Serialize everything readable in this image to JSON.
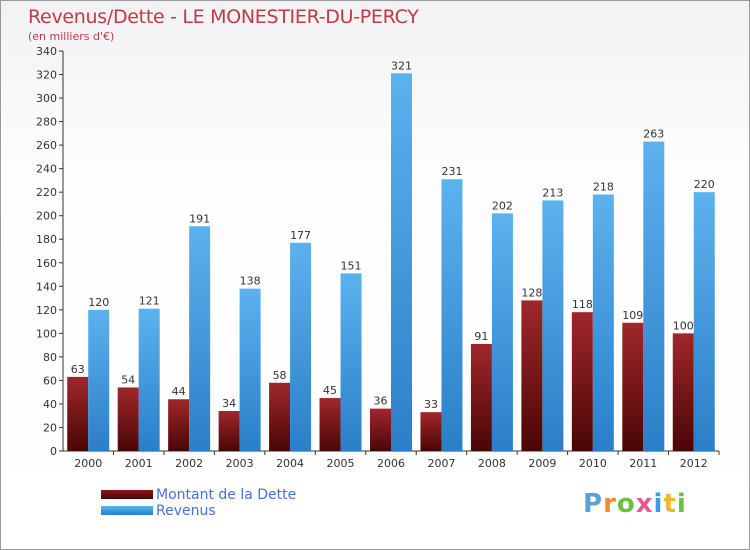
{
  "title": "Revenus/Dette - LE MONESTIER-DU-PERCY",
  "subtitle": "(en milliers d'€)",
  "chart_data": {
    "type": "bar",
    "categories": [
      "2000",
      "2001",
      "2002",
      "2003",
      "2004",
      "2005",
      "2006",
      "2007",
      "2008",
      "2009",
      "2010",
      "2011",
      "2012"
    ],
    "series": [
      {
        "name": "Montant de la Dette",
        "color": "#7a1212",
        "values": [
          63,
          54,
          44,
          34,
          58,
          45,
          36,
          33,
          91,
          128,
          118,
          109,
          100
        ]
      },
      {
        "name": "Revenus",
        "color": "#3e9be0",
        "values": [
          120,
          121,
          191,
          138,
          177,
          151,
          321,
          231,
          202,
          213,
          218,
          263,
          220
        ]
      }
    ],
    "ylim": [
      0,
      340
    ],
    "ytick_step": 20,
    "grid": false,
    "legend": "bottom-left"
  },
  "logo": {
    "text": "Proxiti",
    "letters": [
      {
        "ch": "P",
        "color": "#5aa0d8"
      },
      {
        "ch": "r",
        "color": "#f08c2a"
      },
      {
        "ch": "o",
        "color": "#6cbf3f"
      },
      {
        "ch": "x",
        "color": "#e85a8c"
      },
      {
        "ch": "i",
        "color": "#3e9be0"
      },
      {
        "ch": "t",
        "color": "#f0b82a"
      },
      {
        "ch": "i",
        "color": "#6cbf3f"
      }
    ]
  }
}
